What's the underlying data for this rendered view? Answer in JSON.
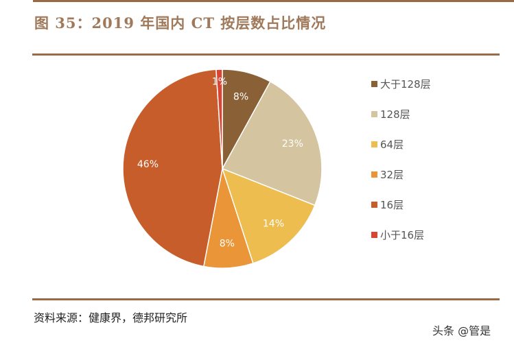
{
  "chart_data": {
    "type": "pie",
    "title": "图 35：2019 年国内 CT 按层数占比情况",
    "categories": [
      "大于128层",
      "128层",
      "64层",
      "32层",
      "16层",
      "小于16层"
    ],
    "values": [
      8,
      23,
      14,
      8,
      46,
      1
    ],
    "labels": [
      "8%",
      "23%",
      "14%",
      "8%",
      "46%",
      "1%"
    ],
    "colors": [
      "#8a6137",
      "#d5c4a0",
      "#edbd50",
      "#ea9538",
      "#c75d2b",
      "#d94433"
    ],
    "legend_position": "right"
  },
  "source": "资料来源：健康界，德邦研究所",
  "watermark": "头条 @管是"
}
